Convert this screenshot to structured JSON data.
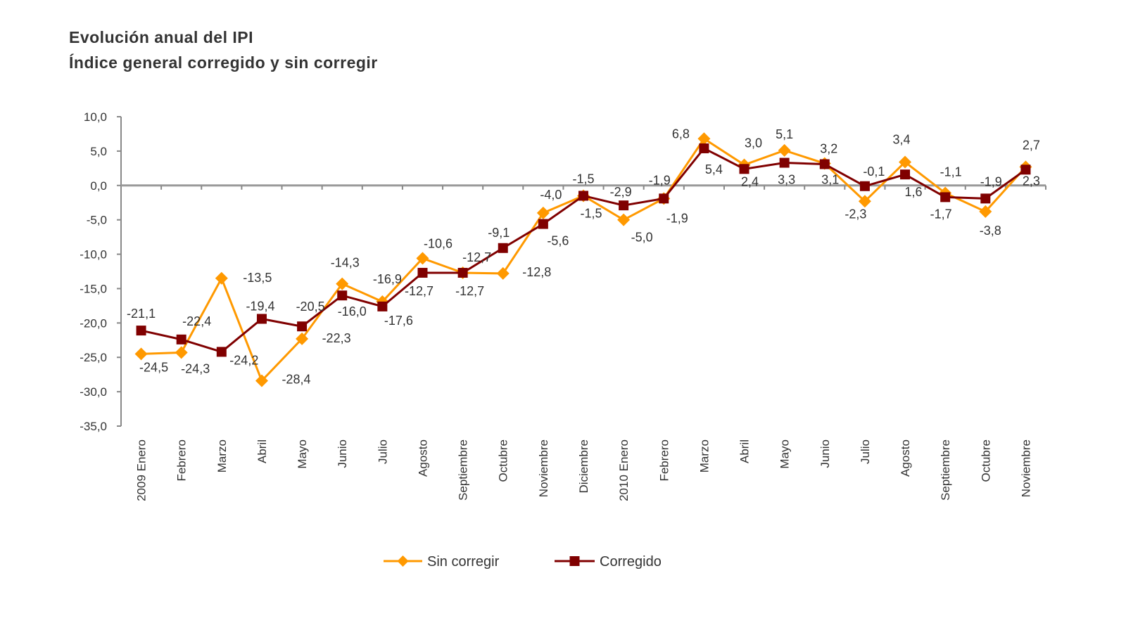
{
  "chart_data": {
    "type": "line",
    "title": "Evolución anual del IPI",
    "subtitle": "Índice general corregido y sin corregir",
    "xlabel": "",
    "ylabel": "",
    "ylim": [
      -35,
      10
    ],
    "yticks": [
      "10,0",
      "5,0",
      "0,0",
      "-5,0",
      "-10,0",
      "-15,0",
      "-20,0",
      "-25,0",
      "-30,0",
      "-35,0"
    ],
    "grid": false,
    "legend_position": "bottom",
    "categories": [
      "2009 Enero",
      "Febrero",
      "Marzo",
      "Abril",
      "Mayo",
      "Junio",
      "Julio",
      "Agosto",
      "Septiembre",
      "Octubre",
      "Noviembre",
      "Diciembre",
      "2010 Enero",
      "Febrero",
      "Marzo",
      "Abril",
      "Mayo",
      "Junio",
      "Julio",
      "Agosto",
      "Septiembre",
      "Octubre",
      "Noviembre"
    ],
    "series": [
      {
        "name": "Sin corregir",
        "color": "#FF9900",
        "marker": "diamond",
        "values": [
          -24.5,
          -24.3,
          -13.5,
          -28.4,
          -22.3,
          -14.3,
          -16.9,
          -10.6,
          -12.7,
          -12.8,
          -4.0,
          -1.5,
          -5.0,
          -1.9,
          6.8,
          3.0,
          5.1,
          3.2,
          -2.3,
          3.4,
          -1.1,
          -3.8,
          2.7
        ]
      },
      {
        "name": "Corregido",
        "color": "#800000",
        "marker": "square",
        "values": [
          -21.1,
          -22.4,
          -24.2,
          -19.4,
          -20.5,
          -16.0,
          -17.6,
          -12.7,
          -12.7,
          -9.1,
          -5.6,
          -1.5,
          -2.9,
          -1.9,
          5.4,
          2.4,
          3.3,
          3.1,
          -0.1,
          1.6,
          -1.7,
          -1.9,
          2.3
        ]
      }
    ]
  }
}
